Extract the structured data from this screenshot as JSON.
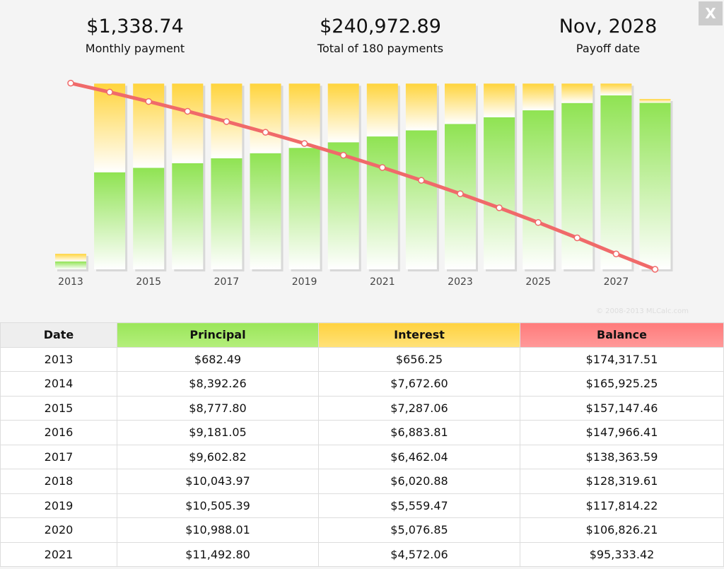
{
  "summary": [
    {
      "value": "$1,338.74",
      "label": "Monthly payment"
    },
    {
      "value": "$240,972.89",
      "label": "Total of 180 payments"
    },
    {
      "value": "Nov, 2028",
      "label": "Payoff date"
    }
  ],
  "close": "X",
  "copyright": "© 2008-2013 MLCalc.com",
  "chart_data": {
    "type": "bar",
    "categories": [
      "2013",
      null,
      "2015",
      null,
      "2017",
      null,
      "2019",
      null,
      "2021",
      null,
      "2023",
      null,
      "2025",
      null,
      "2027",
      null
    ],
    "series": [
      {
        "name": "Principal",
        "color": "#8fe352",
        "values": [
          682.49,
          8392.26,
          8777.8,
          9181.05,
          9602.82,
          10043.97,
          10505.39,
          10988.01,
          11492.8,
          12020.8,
          12573.0,
          13150.6,
          13754.7,
          14386.6,
          15047.5,
          14400.2
        ]
      },
      {
        "name": "Interest",
        "color": "#ffd43c",
        "values": [
          656.25,
          7672.6,
          7287.06,
          6883.81,
          6462.04,
          6020.88,
          5559.47,
          5076.85,
          4572.06,
          4044.1,
          3491.9,
          2914.3,
          2310.2,
          1678.3,
          1017.4,
          335.9
        ]
      },
      {
        "name": "Balance",
        "color": "#f06a6a",
        "axis": "y2",
        "values": [
          174317.51,
          165925.25,
          157147.46,
          147966.41,
          138363.59,
          128319.61,
          117814.22,
          106826.21,
          95333.42,
          83312.6,
          70739.6,
          57589.0,
          43834.3,
          29447.7,
          14400.2,
          0
        ]
      }
    ],
    "ylim": [
      0,
      17000
    ],
    "y2lim": [
      0,
      184000
    ]
  },
  "table": {
    "header": [
      "Date",
      "Principal",
      "Interest",
      "Balance"
    ],
    "rows": [
      [
        "2013",
        "$682.49",
        "$656.25",
        "$174,317.51"
      ],
      [
        "2014",
        "$8,392.26",
        "$7,672.60",
        "$165,925.25"
      ],
      [
        "2015",
        "$8,777.80",
        "$7,287.06",
        "$157,147.46"
      ],
      [
        "2016",
        "$9,181.05",
        "$6,883.81",
        "$147,966.41"
      ],
      [
        "2017",
        "$9,602.82",
        "$6,462.04",
        "$138,363.59"
      ],
      [
        "2018",
        "$10,043.97",
        "$6,020.88",
        "$128,319.61"
      ],
      [
        "2019",
        "$10,505.39",
        "$5,559.47",
        "$117,814.22"
      ],
      [
        "2020",
        "$10,988.01",
        "$5,076.85",
        "$106,826.21"
      ],
      [
        "2021",
        "$11,492.80",
        "$4,572.06",
        "$95,333.42"
      ]
    ]
  }
}
